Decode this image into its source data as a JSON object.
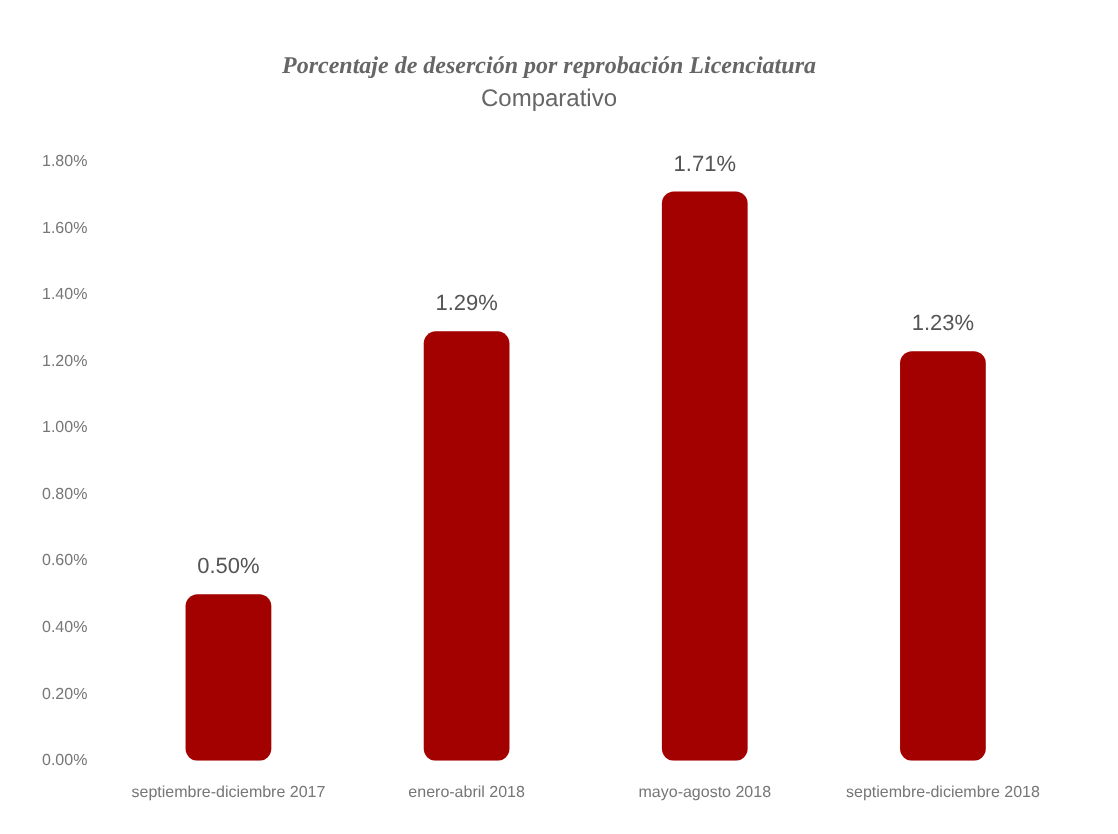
{
  "chart_data": {
    "type": "bar",
    "title": "Porcentaje de deserción por reprobación Licenciatura",
    "subtitle": "Comparativo",
    "categories": [
      "septiembre-diciembre 2017",
      "enero-abril 2018",
      "mayo-agosto 2018",
      "septiembre-diciembre 2018"
    ],
    "values": [
      0.5,
      1.29,
      1.71,
      1.23
    ],
    "value_labels": [
      "0.50%",
      "1.29%",
      "1.71%",
      "1.23%"
    ],
    "color": "#a30000",
    "ylim": [
      0,
      1.8
    ],
    "yticks": [
      {
        "value": 0,
        "label": "0.00%"
      },
      {
        "value": 0.2,
        "label": "0.20%"
      },
      {
        "value": 0.4,
        "label": "0.40%"
      },
      {
        "value": 0.6,
        "label": "0.60%"
      },
      {
        "value": 0.8,
        "label": "0.80%"
      },
      {
        "value": 1,
        "label": "1.00%"
      },
      {
        "value": 1.2,
        "label": "1.20%"
      },
      {
        "value": 1.4,
        "label": "1.40%"
      },
      {
        "value": 1.6,
        "label": "1.60%"
      },
      {
        "value": 1.8,
        "label": "1.80%"
      }
    ],
    "grid": false,
    "legend": false
  }
}
